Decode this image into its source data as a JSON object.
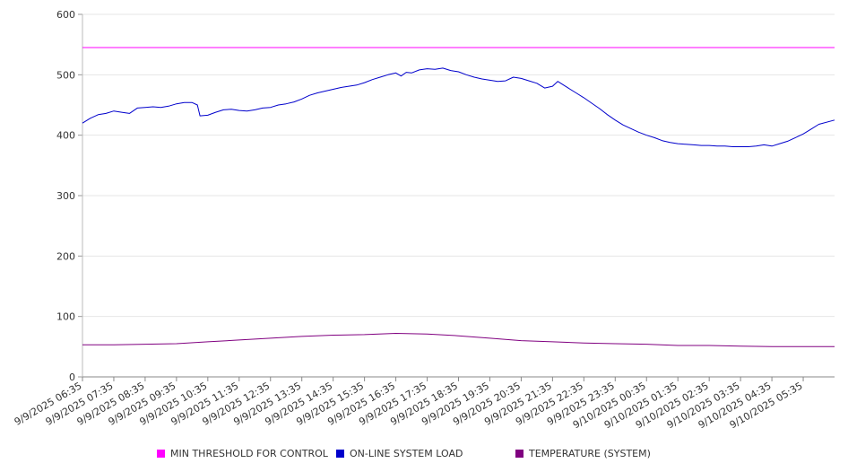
{
  "chart_data": {
    "type": "line",
    "title": "",
    "xlabel": "",
    "ylabel": "",
    "ylim": [
      0,
      600
    ],
    "y_ticks": [
      0,
      100,
      200,
      300,
      400,
      500,
      600
    ],
    "grid": "horizontal",
    "legend_position": "bottom",
    "x_tick_labels": [
      "9/9/2025 06:35",
      "9/9/2025 07:35",
      "9/9/2025 08:35",
      "9/9/2025 09:35",
      "9/9/2025 10:35",
      "9/9/2025 11:35",
      "9/9/2025 12:35",
      "9/9/2025 13:35",
      "9/9/2025 14:35",
      "9/9/2025 15:35",
      "9/9/2025 16:35",
      "9/9/2025 17:35",
      "9/9/2025 18:35",
      "9/9/2025 19:35",
      "9/9/2025 20:35",
      "9/9/2025 21:35",
      "9/9/2025 22:35",
      "9/9/2025 23:35",
      "9/10/2025 00:35",
      "9/10/2025 01:35",
      "9/10/2025 02:35",
      "9/10/2025 03:35",
      "9/10/2025 04:35",
      "9/10/2025 05:35"
    ],
    "x_range": [
      "9/9/2025 06:35",
      "9/10/2025 06:35"
    ],
    "series": [
      {
        "name": "MIN THRESHOLD FOR CONTROL",
        "color": "#ff00ff",
        "points": [
          [
            "9/9/2025 06:35",
            545
          ],
          [
            "9/10/2025 06:35",
            545
          ]
        ]
      },
      {
        "name": "ON-LINE SYSTEM LOAD",
        "color": "#0000cc",
        "points": [
          [
            "9/9/2025 06:35",
            420
          ],
          [
            "9/9/2025 06:50",
            428
          ],
          [
            "9/9/2025 07:05",
            434
          ],
          [
            "9/9/2025 07:20",
            436
          ],
          [
            "9/9/2025 07:35",
            440
          ],
          [
            "9/9/2025 07:50",
            438
          ],
          [
            "9/9/2025 08:05",
            436
          ],
          [
            "9/9/2025 08:20",
            445
          ],
          [
            "9/9/2025 08:35",
            446
          ],
          [
            "9/9/2025 08:50",
            447
          ],
          [
            "9/9/2025 09:05",
            446
          ],
          [
            "9/9/2025 09:20",
            448
          ],
          [
            "9/9/2025 09:35",
            452
          ],
          [
            "9/9/2025 09:50",
            454
          ],
          [
            "9/9/2025 10:05",
            454
          ],
          [
            "9/9/2025 10:15",
            450
          ],
          [
            "9/9/2025 10:20",
            432
          ],
          [
            "9/9/2025 10:35",
            433
          ],
          [
            "9/9/2025 10:50",
            438
          ],
          [
            "9/9/2025 11:05",
            442
          ],
          [
            "9/9/2025 11:20",
            443
          ],
          [
            "9/9/2025 11:35",
            441
          ],
          [
            "9/9/2025 11:50",
            440
          ],
          [
            "9/9/2025 12:05",
            442
          ],
          [
            "9/9/2025 12:20",
            445
          ],
          [
            "9/9/2025 12:35",
            446
          ],
          [
            "9/9/2025 12:50",
            450
          ],
          [
            "9/9/2025 13:05",
            452
          ],
          [
            "9/9/2025 13:20",
            455
          ],
          [
            "9/9/2025 13:35",
            460
          ],
          [
            "9/9/2025 13:50",
            466
          ],
          [
            "9/9/2025 14:05",
            470
          ],
          [
            "9/9/2025 14:20",
            473
          ],
          [
            "9/9/2025 14:35",
            476
          ],
          [
            "9/9/2025 14:50",
            479
          ],
          [
            "9/9/2025 15:05",
            481
          ],
          [
            "9/9/2025 15:20",
            483
          ],
          [
            "9/9/2025 15:35",
            487
          ],
          [
            "9/9/2025 15:50",
            492
          ],
          [
            "9/9/2025 16:05",
            496
          ],
          [
            "9/9/2025 16:20",
            500
          ],
          [
            "9/9/2025 16:35",
            503
          ],
          [
            "9/9/2025 16:45",
            498
          ],
          [
            "9/9/2025 16:55",
            504
          ],
          [
            "9/9/2025 17:05",
            503
          ],
          [
            "9/9/2025 17:20",
            508
          ],
          [
            "9/9/2025 17:35",
            510
          ],
          [
            "9/9/2025 17:50",
            509
          ],
          [
            "9/9/2025 18:05",
            511
          ],
          [
            "9/9/2025 18:20",
            507
          ],
          [
            "9/9/2025 18:35",
            505
          ],
          [
            "9/9/2025 18:50",
            500
          ],
          [
            "9/9/2025 19:05",
            496
          ],
          [
            "9/9/2025 19:20",
            493
          ],
          [
            "9/9/2025 19:35",
            491
          ],
          [
            "9/9/2025 19:50",
            489
          ],
          [
            "9/9/2025 20:05",
            490
          ],
          [
            "9/9/2025 20:20",
            496
          ],
          [
            "9/9/2025 20:35",
            494
          ],
          [
            "9/9/2025 20:50",
            490
          ],
          [
            "9/9/2025 21:05",
            486
          ],
          [
            "9/9/2025 21:20",
            478
          ],
          [
            "9/9/2025 21:35",
            481
          ],
          [
            "9/9/2025 21:45",
            489
          ],
          [
            "9/9/2025 22:05",
            478
          ],
          [
            "9/9/2025 22:20",
            470
          ],
          [
            "9/9/2025 22:35",
            462
          ],
          [
            "9/9/2025 22:50",
            453
          ],
          [
            "9/9/2025 23:05",
            444
          ],
          [
            "9/9/2025 23:20",
            434
          ],
          [
            "9/9/2025 23:35",
            425
          ],
          [
            "9/9/2025 23:50",
            417
          ],
          [
            "9/10/2025 00:05",
            411
          ],
          [
            "9/10/2025 00:20",
            405
          ],
          [
            "9/10/2025 00:35",
            400
          ],
          [
            "9/10/2025 00:50",
            396
          ],
          [
            "9/10/2025 01:05",
            391
          ],
          [
            "9/10/2025 01:20",
            388
          ],
          [
            "9/10/2025 01:35",
            386
          ],
          [
            "9/10/2025 01:50",
            385
          ],
          [
            "9/10/2025 02:05",
            384
          ],
          [
            "9/10/2025 02:20",
            383
          ],
          [
            "9/10/2025 02:35",
            383
          ],
          [
            "9/10/2025 02:50",
            382
          ],
          [
            "9/10/2025 03:05",
            382
          ],
          [
            "9/10/2025 03:20",
            381
          ],
          [
            "9/10/2025 03:35",
            381
          ],
          [
            "9/10/2025 03:50",
            381
          ],
          [
            "9/10/2025 04:05",
            382
          ],
          [
            "9/10/2025 04:20",
            384
          ],
          [
            "9/10/2025 04:35",
            382
          ],
          [
            "9/10/2025 04:50",
            386
          ],
          [
            "9/10/2025 05:05",
            390
          ],
          [
            "9/10/2025 05:20",
            396
          ],
          [
            "9/10/2025 05:35",
            402
          ],
          [
            "9/10/2025 05:50",
            410
          ],
          [
            "9/10/2025 06:05",
            418
          ],
          [
            "9/10/2025 06:35",
            425
          ]
        ]
      },
      {
        "name": "TEMPERATURE (SYSTEM)",
        "color": "#800080",
        "points": [
          [
            "9/9/2025 06:35",
            53
          ],
          [
            "9/9/2025 07:35",
            53
          ],
          [
            "9/9/2025 08:35",
            54
          ],
          [
            "9/9/2025 09:35",
            55
          ],
          [
            "9/9/2025 10:35",
            58
          ],
          [
            "9/9/2025 11:35",
            61
          ],
          [
            "9/9/2025 12:35",
            64
          ],
          [
            "9/9/2025 13:35",
            67
          ],
          [
            "9/9/2025 14:35",
            69
          ],
          [
            "9/9/2025 15:35",
            70
          ],
          [
            "9/9/2025 16:35",
            72
          ],
          [
            "9/9/2025 17:35",
            71
          ],
          [
            "9/9/2025 18:35",
            68
          ],
          [
            "9/9/2025 19:35",
            64
          ],
          [
            "9/9/2025 20:35",
            60
          ],
          [
            "9/9/2025 21:35",
            58
          ],
          [
            "9/9/2025 22:35",
            56
          ],
          [
            "9/9/2025 23:35",
            55
          ],
          [
            "9/10/2025 00:35",
            54
          ],
          [
            "9/10/2025 01:35",
            52
          ],
          [
            "9/10/2025 02:35",
            52
          ],
          [
            "9/10/2025 03:35",
            51
          ],
          [
            "9/10/2025 04:35",
            50
          ],
          [
            "9/10/2025 05:35",
            50
          ],
          [
            "9/10/2025 06:35",
            50
          ]
        ]
      }
    ]
  }
}
